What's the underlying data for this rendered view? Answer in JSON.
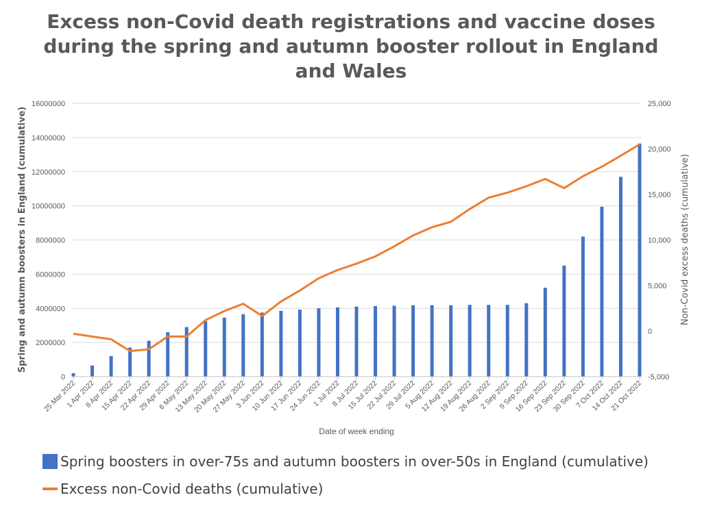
{
  "chart_data": {
    "type": "bar+line",
    "title": [
      "Excess non-Covid death registrations and vaccine doses",
      "during the spring and autumn booster rollout in England",
      "and Wales"
    ],
    "xlabel": "Date of week ending",
    "ylabel": "Spring and autumn boosters in England (cumulative)",
    "y2label": "Non-Covid excess deaths (cumulative)",
    "ylim": [
      0,
      16000000
    ],
    "y2lim": [
      -5000,
      25000
    ],
    "yticks": [
      "0",
      "2000000",
      "4000000",
      "6000000",
      "8000000",
      "10000000",
      "12000000",
      "14000000",
      "16000000"
    ],
    "y2ticks": [
      "-5,000",
      "0",
      "5,000",
      "10,000",
      "15,000",
      "20,000",
      "25,000"
    ],
    "grid": true,
    "legend": "bottom",
    "categories": [
      "25 Mar 2022",
      "1 Apr 2022",
      "8 Apr 2022",
      "15 Apr 2022",
      "22 Apr 2022",
      "29 Apr 2022",
      "6 May 2022",
      "13 May 2022",
      "20 May 2022",
      "27 May 2022",
      "3 Jun 2022",
      "10 Jun 2022",
      "17 Jun 2022",
      "24 Jun 2022",
      "1 Jul 2022",
      "8 Jul 2022",
      "15 Jul 2022",
      "22 Jul 2022",
      "29 Jul 2022",
      "5 Aug 2022",
      "12 Aug 2022",
      "19 Aug 2022",
      "26 Aug 2022",
      "2 Sep 2022",
      "9 Sep 2022",
      "16 Sep 2022",
      "23 Sep 2022",
      "30 Sep 2022",
      "7 Oct 2022",
      "14 Oct 2022",
      "21 Oct 2022"
    ],
    "series": [
      {
        "name": "Spring boosters in over-75s and autumn boosters in over-50s in England (cumulative)",
        "type": "bar",
        "axis": "left",
        "color": "#4472C4",
        "values": [
          200000,
          650000,
          1200000,
          1700000,
          2100000,
          2600000,
          2900000,
          3250000,
          3450000,
          3650000,
          3750000,
          3850000,
          3920000,
          4000000,
          4050000,
          4100000,
          4130000,
          4150000,
          4180000,
          4180000,
          4180000,
          4200000,
          4200000,
          4200000,
          4300000,
          5200000,
          6500000,
          8200000,
          9950000,
          11700000,
          13650000
        ]
      },
      {
        "name": "Excess non-Covid deaths (cumulative)",
        "type": "line",
        "axis": "right",
        "color": "#ED7D31",
        "values": [
          -300,
          -600,
          -900,
          -2200,
          -2000,
          -600,
          -600,
          1200,
          2200,
          3000,
          1650,
          3250,
          4450,
          5800,
          6700,
          7400,
          8200,
          9300,
          10500,
          11400,
          12000,
          13400,
          14650,
          15200,
          15900,
          16700,
          15700,
          17000,
          18050,
          19250,
          20500
        ]
      }
    ]
  }
}
